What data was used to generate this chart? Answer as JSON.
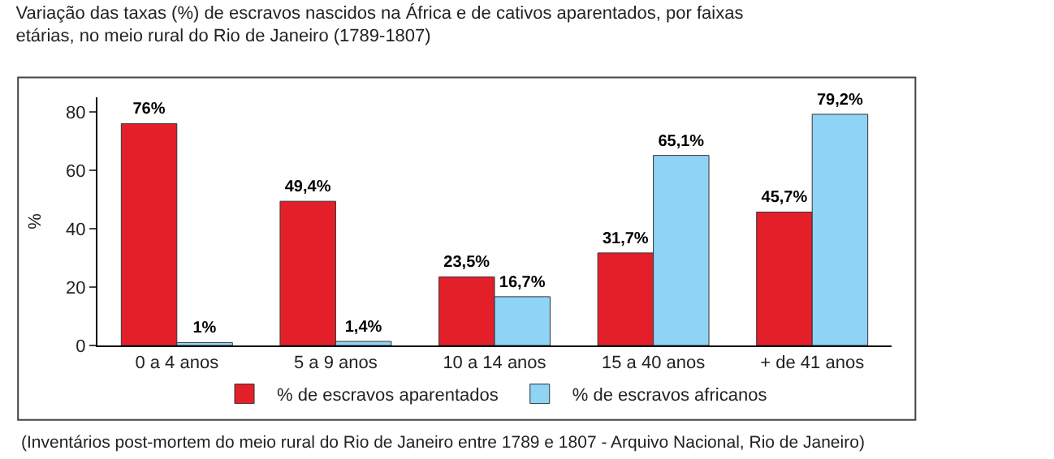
{
  "chart_data": {
    "type": "bar",
    "title": "Variação das taxas (%) de escravos nascidos na África e de cativos aparentados, por faixas etárias, no meio rural do Rio de Janeiro (1789-1807)",
    "ylabel": "%",
    "categories": [
      "0 a 4 anos",
      "5 a 9 anos",
      "10 a 14 anos",
      "15 a 40 anos",
      "+ de 41 anos"
    ],
    "series": [
      {
        "name": "% de escravos aparentados",
        "color": "#e3202a",
        "values": [
          76,
          49.4,
          23.5,
          31.7,
          45.7
        ],
        "value_labels": [
          "76%",
          "49,4%",
          "23,5%",
          "31,7%",
          "45,7%"
        ]
      },
      {
        "name": "% de escravos africanos",
        "color": "#8fd3f5",
        "values": [
          1,
          1.4,
          16.7,
          65.1,
          79.2
        ],
        "value_labels": [
          "1%",
          "1,4%",
          "16,7%",
          "65,1%",
          "79,2%"
        ]
      }
    ],
    "ylim": [
      0,
      85
    ],
    "yticks": [
      0,
      20,
      40,
      60,
      80
    ],
    "grid": false,
    "legend": "bottom",
    "annotations": [
      "(Inventários post-mortem do meio rural do Rio de Janeiro entre 1789 e 1807 - Arquivo Nacional, Rio de Janeiro)"
    ]
  }
}
